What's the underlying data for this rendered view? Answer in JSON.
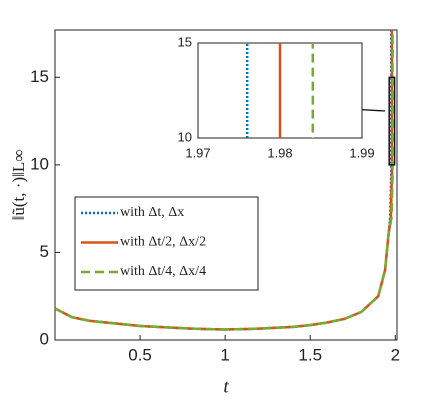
{
  "chart_data": {
    "type": "line",
    "xlabel": "t",
    "ylabel": "‖ũ(t, ·)‖L∞",
    "xlim": [
      0,
      2.01
    ],
    "ylim": [
      0,
      17.7
    ],
    "xticks": [
      0.5,
      1,
      1.5,
      2
    ],
    "yticks": [
      0,
      5,
      10,
      15
    ],
    "legend": "lower left",
    "series": [
      {
        "name": "with Δt, Δx",
        "color": "#0072bd",
        "style": "dotted",
        "x": [
          0,
          0.1,
          0.2,
          0.3,
          0.4,
          0.5,
          0.6,
          0.7,
          0.8,
          0.9,
          1.0,
          1.1,
          1.2,
          1.3,
          1.4,
          1.5,
          1.6,
          1.7,
          1.8,
          1.9,
          1.94,
          1.96,
          1.97,
          1.976,
          1.976
        ],
        "values": [
          1.8,
          1.3,
          1.1,
          1.0,
          0.9,
          0.8,
          0.75,
          0.7,
          0.65,
          0.62,
          0.6,
          0.62,
          0.65,
          0.7,
          0.75,
          0.85,
          1.0,
          1.2,
          1.6,
          2.5,
          4,
          6,
          7,
          9.5,
          18
        ]
      },
      {
        "name": "with Δt/2, Δx/2",
        "color": "#d95319",
        "style": "solid",
        "x": [
          0,
          0.1,
          0.2,
          0.3,
          0.4,
          0.5,
          0.6,
          0.7,
          0.8,
          0.9,
          1.0,
          1.1,
          1.2,
          1.3,
          1.4,
          1.5,
          1.6,
          1.7,
          1.8,
          1.9,
          1.94,
          1.96,
          1.974,
          1.98,
          1.98
        ],
        "values": [
          1.8,
          1.3,
          1.1,
          1.0,
          0.9,
          0.8,
          0.75,
          0.7,
          0.65,
          0.62,
          0.6,
          0.62,
          0.65,
          0.7,
          0.75,
          0.85,
          1.0,
          1.2,
          1.6,
          2.5,
          4,
          6,
          7,
          9.5,
          18
        ]
      },
      {
        "name": "with Δt/4, Δx/4",
        "color": "#77ac30",
        "style": "dashed",
        "x": [
          0,
          0.1,
          0.2,
          0.3,
          0.4,
          0.5,
          0.6,
          0.7,
          0.8,
          0.9,
          1.0,
          1.1,
          1.2,
          1.3,
          1.4,
          1.5,
          1.6,
          1.7,
          1.8,
          1.9,
          1.94,
          1.96,
          1.978,
          1.984,
          1.984
        ],
        "values": [
          1.8,
          1.3,
          1.1,
          1.0,
          0.9,
          0.8,
          0.75,
          0.7,
          0.65,
          0.62,
          0.6,
          0.62,
          0.65,
          0.7,
          0.75,
          0.85,
          1.0,
          1.2,
          1.6,
          2.5,
          4,
          6,
          7,
          9.5,
          18
        ]
      }
    ],
    "inset": {
      "xlim": [
        1.97,
        1.99
      ],
      "ylim": [
        10,
        15
      ],
      "xticks": [
        1.97,
        1.98,
        1.99
      ],
      "yticks": [
        10,
        15
      ]
    }
  }
}
